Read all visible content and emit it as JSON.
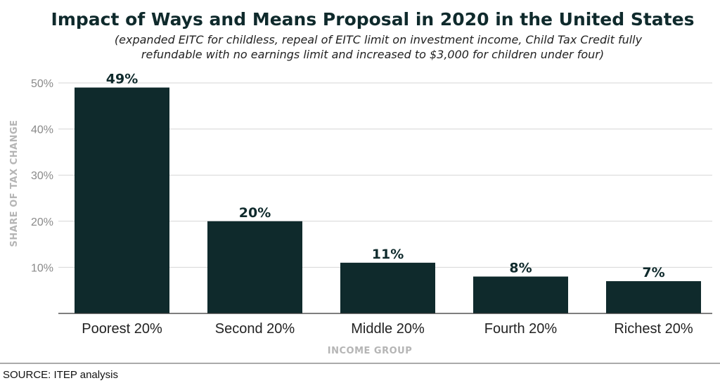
{
  "chart_data": {
    "type": "bar",
    "title": "Impact of Ways and Means Proposal in 2020 in the United States",
    "subtitle_lines": [
      "(expanded EITC for childless, repeal of EITC limit on investment income, Child Tax Credit fully",
      "refundable with no earnings limit and increased to $3,000 for children under four)"
    ],
    "categories": [
      "Poorest 20%",
      "Second 20%",
      "Middle 20%",
      "Fourth 20%",
      "Richest 20%"
    ],
    "values": [
      49,
      20,
      11,
      8,
      7
    ],
    "data_labels": [
      "49%",
      "20%",
      "11%",
      "8%",
      "7%"
    ],
    "xlabel": "INCOME GROUP",
    "ylabel": "SHARE OF TAX CHANGE",
    "ylim": [
      0,
      50
    ],
    "yticks": [
      10,
      20,
      30,
      40,
      50
    ],
    "ytick_labels": [
      "10%",
      "20%",
      "30%",
      "40%",
      "50%"
    ],
    "grid": true,
    "bar_color": "#0f2a2c"
  },
  "source": "SOURCE: ITEP analysis"
}
